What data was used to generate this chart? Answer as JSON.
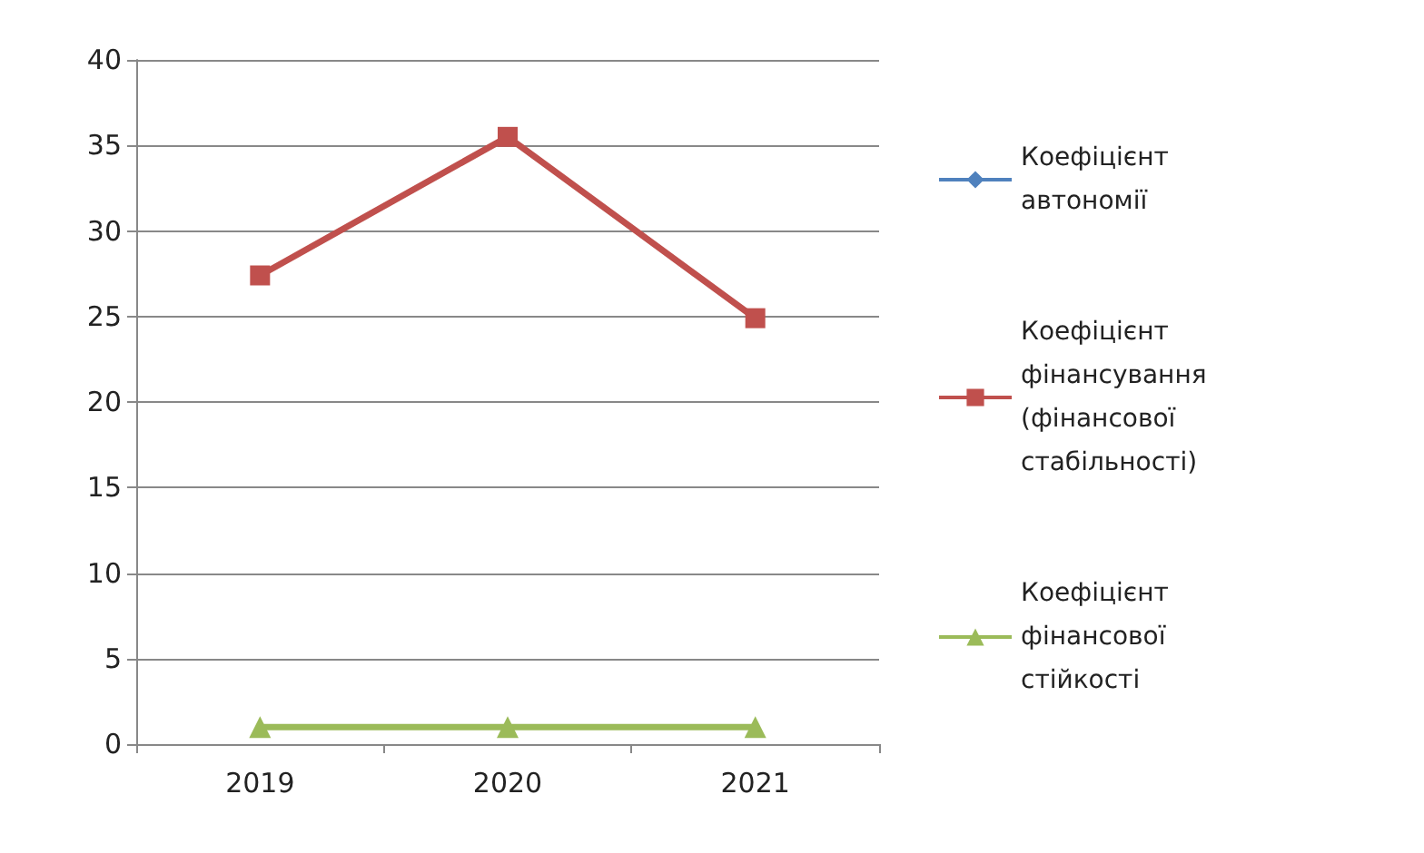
{
  "chart_data": {
    "type": "line",
    "categories": [
      "2019",
      "2020",
      "2021"
    ],
    "series": [
      {
        "name": "Коефіцієнт автономії",
        "color": "#4f81bd",
        "marker": "diamond",
        "values": [
          null,
          null,
          null
        ]
      },
      {
        "name": "Коефіцієнт фінансування (фінансової стабільності)",
        "color": "#c0504d",
        "marker": "square",
        "values": [
          27.4,
          35.5,
          24.9
        ]
      },
      {
        "name": "Коефіцієнт фінансової стійкості",
        "color": "#9bbb59",
        "marker": "triangle",
        "values": [
          1,
          1,
          1
        ]
      }
    ],
    "ylim": [
      0,
      40
    ],
    "yticks": [
      0,
      5,
      10,
      15,
      20,
      25,
      30,
      35,
      40
    ],
    "grid": "y",
    "legend": "right",
    "line_style": "solid"
  }
}
